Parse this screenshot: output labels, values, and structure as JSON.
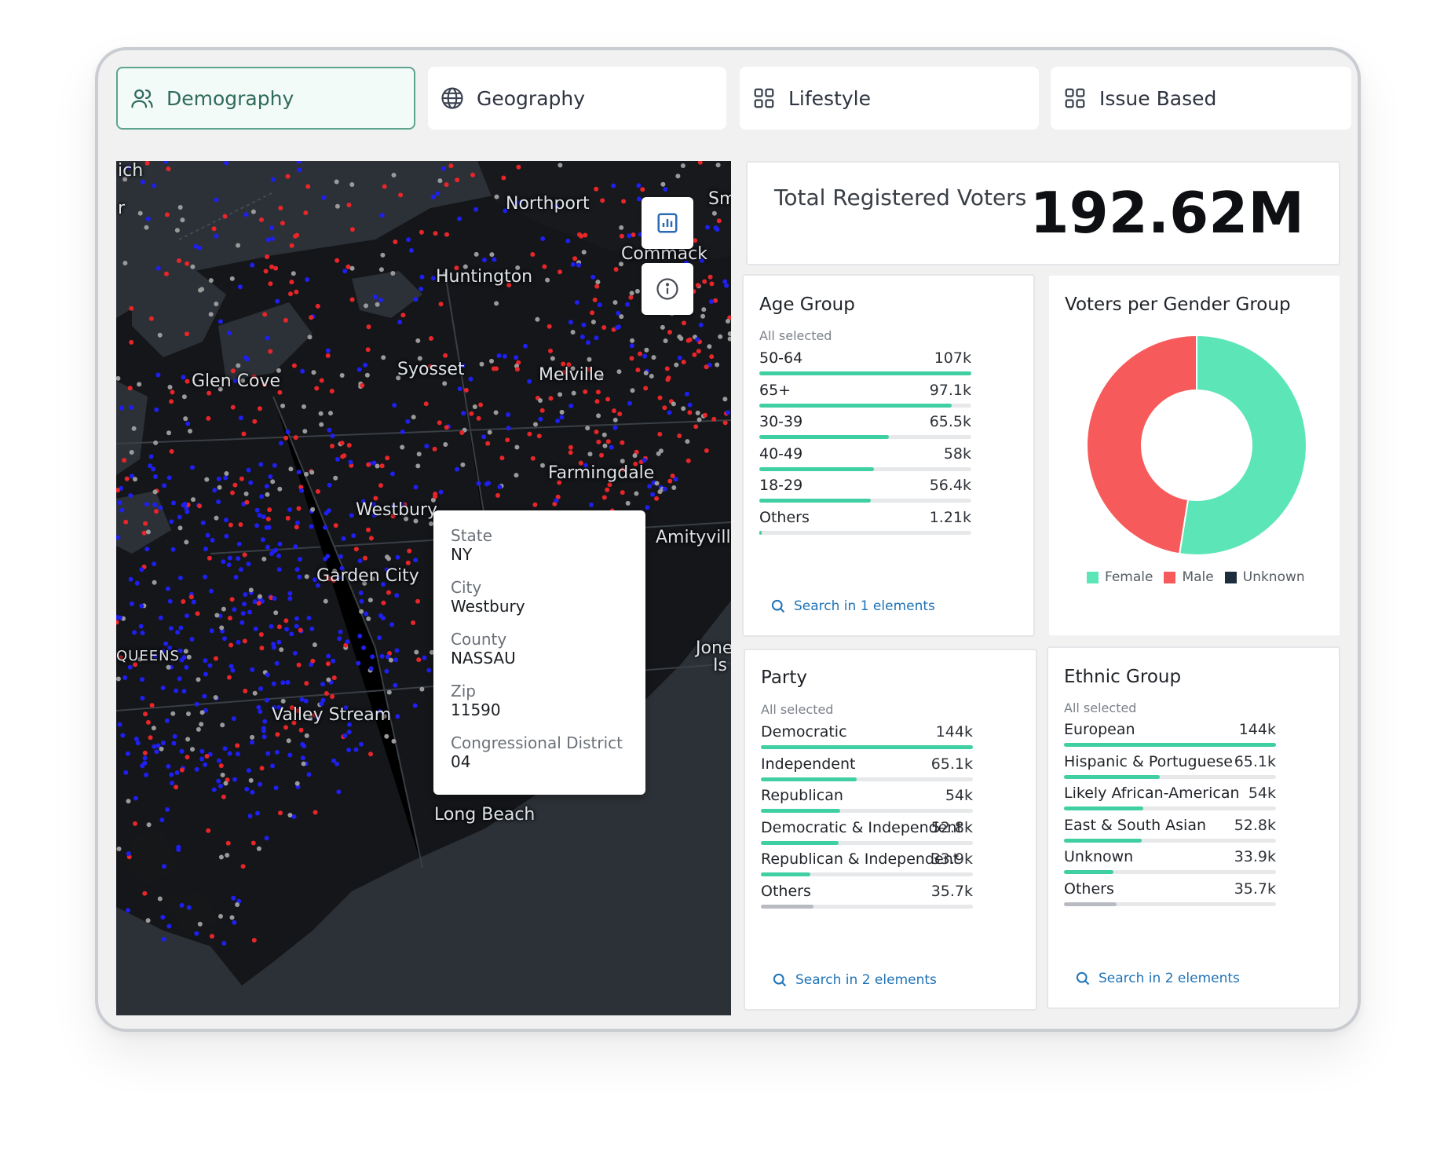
{
  "tabs": [
    {
      "label": "Demography",
      "icon": "users-icon",
      "active": true
    },
    {
      "label": "Geography",
      "icon": "globe-icon",
      "active": false
    },
    {
      "label": "Lifestyle",
      "icon": "grid-icon",
      "active": false
    },
    {
      "label": "Issue Based",
      "icon": "grid-icon",
      "active": false
    }
  ],
  "map": {
    "labels": {
      "ich": "ich",
      "r": "r",
      "northport": "Northport",
      "sm": "Sm",
      "commack": "Commack",
      "huntington": "Huntington",
      "glen_cove": "Glen Cove",
      "syosset": "Syosset",
      "melville": "Melville",
      "farmingdale": "Farmingdale",
      "westbury": "Westbury",
      "amityville": "Amityville",
      "garden_city": "Garden City",
      "queens": "QUEENS",
      "valley_stream": "Valley Stream",
      "long_beach": "Long Beach",
      "jones": "Jone",
      "is": "Is"
    },
    "buttons": {
      "chart": "bar-chart-icon",
      "info": "info-icon"
    },
    "point_colors": {
      "red": "#e8262a",
      "blue": "#1f1ff0",
      "grey": "#9a9a9a"
    },
    "tooltip": {
      "state_label": "State",
      "state": "NY",
      "city_label": "City",
      "city": "Westbury",
      "county_label": "County",
      "county": "NASSAU",
      "zip_label": "Zip",
      "zip": "11590",
      "district_label": "Congressional District",
      "district": "04"
    }
  },
  "total": {
    "label": "Total Registered Voters",
    "value": "192.62M"
  },
  "age_group": {
    "title": "Age Group",
    "subtitle": "All selected",
    "rows": [
      {
        "label": "50-64",
        "value": "107k",
        "fraction": 1.0
      },
      {
        "label": "65+",
        "value": "97.1k",
        "fraction": 0.908
      },
      {
        "label": "30-39",
        "value": "65.5k",
        "fraction": 0.612
      },
      {
        "label": "40-49",
        "value": "58k",
        "fraction": 0.542
      },
      {
        "label": "18-29",
        "value": "56.4k",
        "fraction": 0.527
      },
      {
        "label": "Others",
        "value": "1.21k",
        "fraction": 0.011
      }
    ],
    "search": "Search in 1 elements"
  },
  "gender": {
    "title": "Voters per Gender Group",
    "legend": [
      {
        "label": "Female",
        "color": "#5ce6b8"
      },
      {
        "label": "Male",
        "color": "#f75a5a"
      },
      {
        "label": "Unknown",
        "color": "#1e2d3d"
      }
    ],
    "chart_data": {
      "type": "pie",
      "title": "Voters per Gender Group",
      "categories": [
        "Female",
        "Male",
        "Unknown"
      ],
      "values": [
        52.5,
        47.5,
        0
      ],
      "unit": "%",
      "colors": [
        "#5ce6b8",
        "#f75a5a",
        "#1e2d3d"
      ]
    }
  },
  "party": {
    "title": "Party",
    "subtitle": "All selected",
    "rows": [
      {
        "label": "Democratic",
        "value": "144k",
        "fraction": 1.0
      },
      {
        "label": "Independent",
        "value": "65.1k",
        "fraction": 0.452
      },
      {
        "label": "Republican",
        "value": "54k",
        "fraction": 0.375
      },
      {
        "label": "Democratic & Independent",
        "value": "52.8k",
        "fraction": 0.367
      },
      {
        "label": "Republican & Independent",
        "value": "33.9k",
        "fraction": 0.235
      },
      {
        "label": "Others",
        "value": "35.7k",
        "fraction": 0.248,
        "grey": true
      }
    ],
    "search": "Search in 2 elements"
  },
  "ethnic": {
    "title": "Ethnic Group",
    "subtitle": "All selected",
    "rows": [
      {
        "label": "European",
        "value": "144k",
        "fraction": 1.0
      },
      {
        "label": "Hispanic & Portuguese",
        "value": "65.1k",
        "fraction": 0.452
      },
      {
        "label": "Likely African-American",
        "value": "54k",
        "fraction": 0.375
      },
      {
        "label": "East & South Asian",
        "value": "52.8k",
        "fraction": 0.367
      },
      {
        "label": "Unknown",
        "value": "33.9k",
        "fraction": 0.235
      },
      {
        "label": "Others",
        "value": "35.7k",
        "fraction": 0.248,
        "grey": true
      }
    ],
    "search": "Search in 2 elements"
  }
}
